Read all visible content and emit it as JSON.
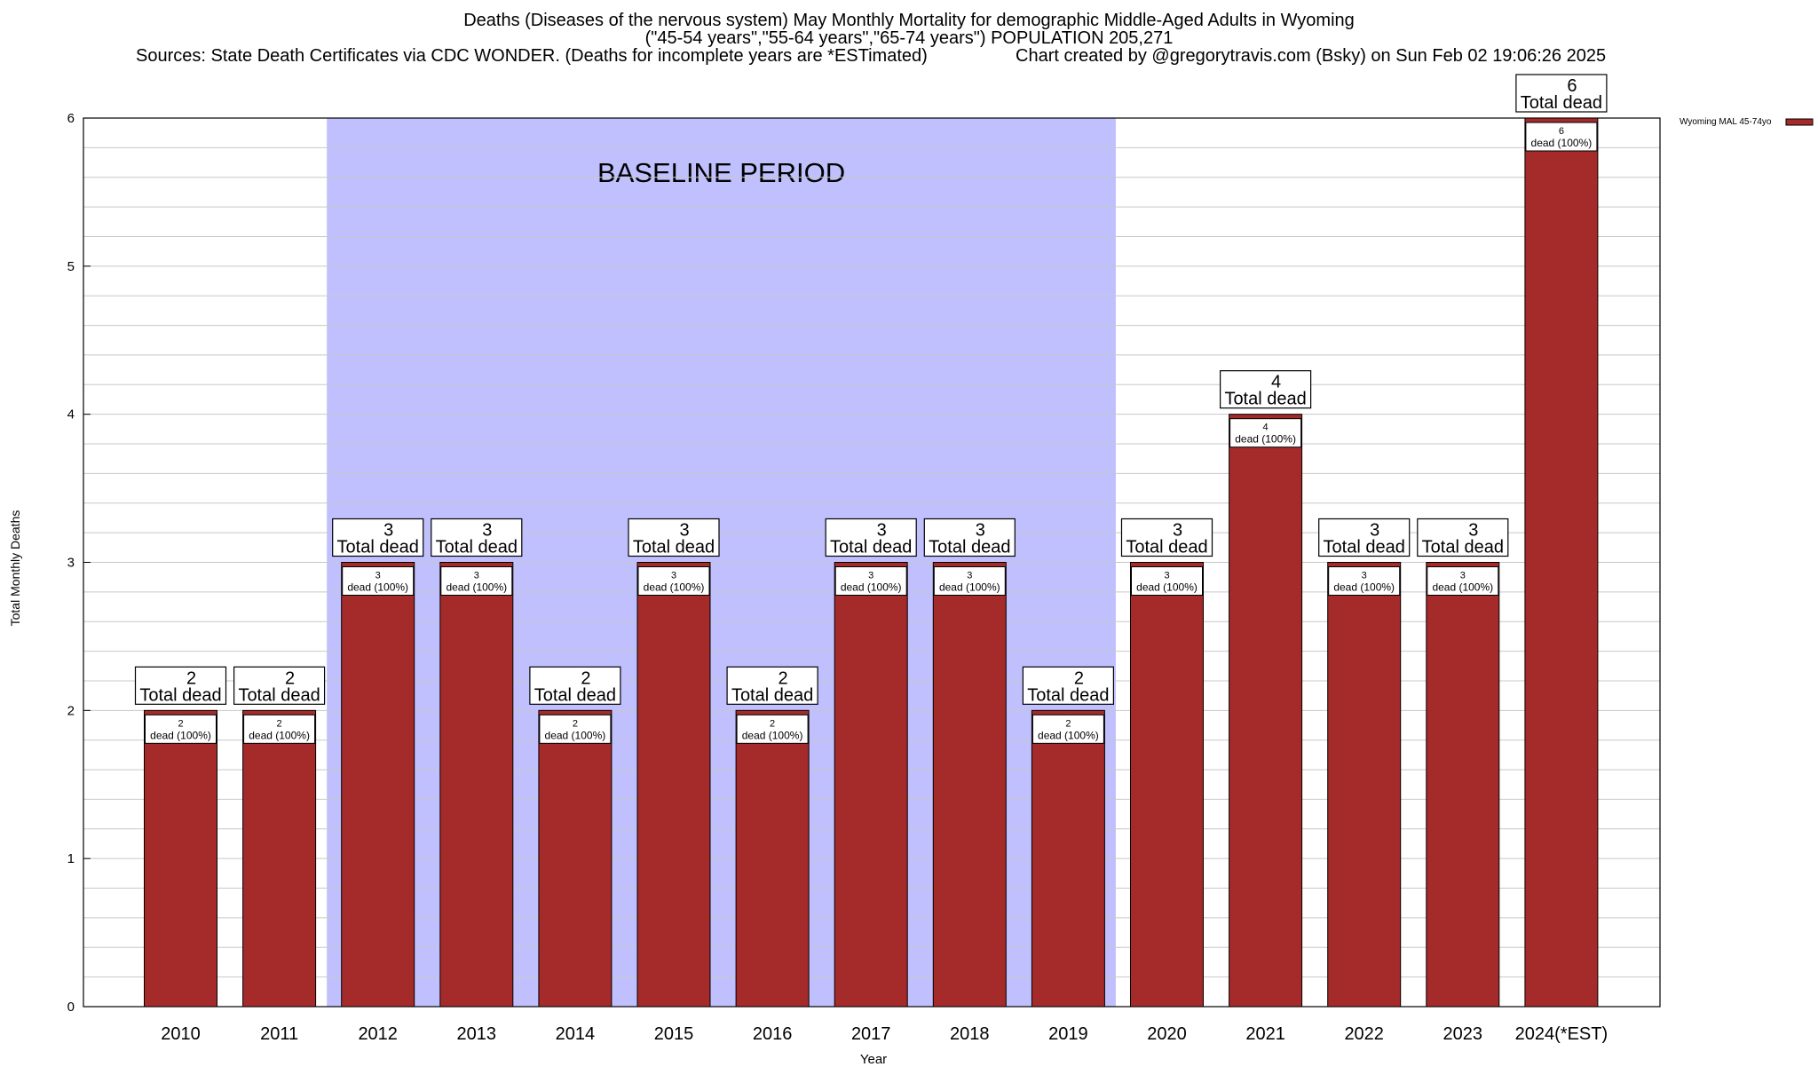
{
  "header": {
    "line1": "Deaths (Diseases of the nervous system) May Monthly Mortality for demographic Middle-Aged Adults in Wyoming",
    "line2": "(\"45-54 years\",\"55-64 years\",\"65-74 years\") POPULATION 205,271",
    "line3": "Sources: State Death Certificates via CDC WONDER. (Deaths for incomplete years are *ESTimated)",
    "line4": "Chart created by @gregorytravis.com (Bsky) on Sun Feb 02 19:06:26 2025"
  },
  "colors": {
    "bar": "#a52a2a",
    "baseline_band": "#c0c0ff",
    "grid": "#c8c8c8"
  },
  "chart_data": {
    "type": "bar",
    "categories": [
      "2010",
      "2011",
      "2012",
      "2013",
      "2014",
      "2015",
      "2016",
      "2017",
      "2018",
      "2019",
      "2020",
      "2021",
      "2022",
      "2023",
      "2024(*EST)"
    ],
    "series": [
      {
        "name": "Wyoming MAL 45-74yo",
        "values": [
          2,
          2,
          3,
          3,
          2,
          3,
          2,
          3,
          3,
          2,
          3,
          4,
          3,
          3,
          6
        ]
      }
    ],
    "total_labels": [
      "2",
      "2",
      "3",
      "3",
      "2",
      "3",
      "2",
      "3",
      "3",
      "2",
      "3",
      "4",
      "3",
      "3",
      "6"
    ],
    "total_suffix": "Total dead",
    "inner_labels": [
      "2",
      "2",
      "3",
      "3",
      "2",
      "3",
      "2",
      "3",
      "3",
      "2",
      "3",
      "4",
      "3",
      "3",
      "6"
    ],
    "inner_suffix": "dead (100%)",
    "baseline": {
      "label": "BASELINE PERIOD",
      "from": "2012",
      "to": "2019"
    },
    "ylabel": "Total Monthly Deaths",
    "xlabel": "Year",
    "ylim": [
      0,
      6
    ],
    "yticks": [
      "0",
      "1",
      "2",
      "3",
      "4",
      "5",
      "6"
    ],
    "grid": true,
    "legend_position": "top-right"
  }
}
